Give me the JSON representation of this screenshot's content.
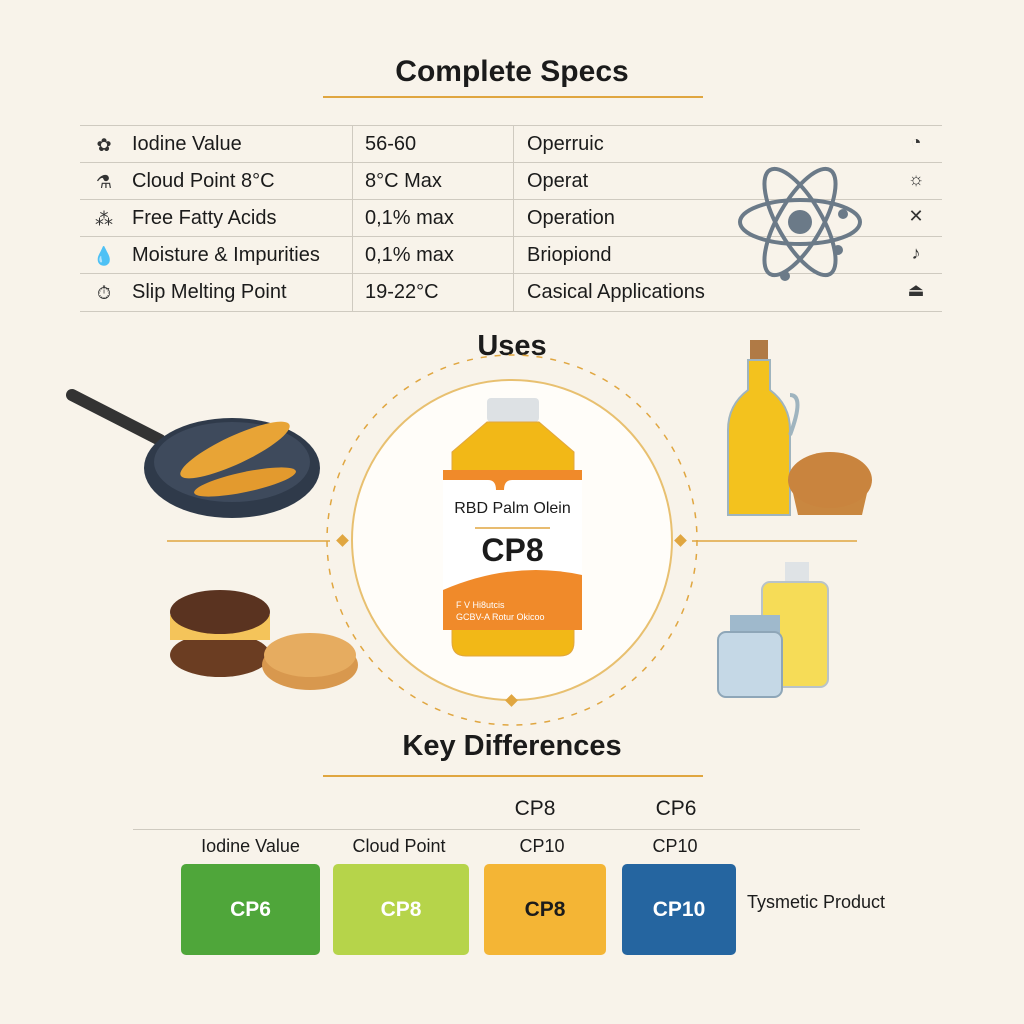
{
  "specs": {
    "title": "Complete Specs",
    "rows": [
      {
        "icon": "gear-flower-icon",
        "label": "Iodine Value",
        "value": "56-60",
        "application": "Operruic",
        "right_icon": "gauge-icon"
      },
      {
        "icon": "flask-icon",
        "label": "Cloud Point 8°C",
        "value": "8°C Max",
        "application": "Operat",
        "right_icon": "sun-icon"
      },
      {
        "icon": "molecule-icon",
        "label": "Free Fatty Acids",
        "value": "0,1% max",
        "application": "Operation",
        "right_icon": "cross-icon"
      },
      {
        "icon": "drop-icon",
        "label": "Moisture & Impurities",
        "value": "0,1% max",
        "application": "Briopiond",
        "right_icon": "music-note-icon"
      },
      {
        "icon": "timer-icon",
        "label": "Slip Melting Point",
        "value": "19-22°C",
        "application": "Casical Applications",
        "right_icon": "stack-icon"
      }
    ]
  },
  "uses": {
    "title": "Uses",
    "product_name": "RBD Palm Olein",
    "product_grade": "CP8",
    "label_small_1": "F V Hi8utcis",
    "label_small_2": "GCBV-A Rotur Okicoo"
  },
  "differences": {
    "title": "Key Differences",
    "top_headers": [
      "CP8",
      "CP6"
    ],
    "headers": [
      "Iodine Value",
      "Cloud Point",
      "CP10",
      "CP10"
    ],
    "boxes": [
      {
        "label": "CP6",
        "color": "#4fa63a"
      },
      {
        "label": "CP8",
        "color": "#b6d44a"
      },
      {
        "label": "CP8",
        "color": "#f4b535"
      },
      {
        "label": "CP10",
        "color": "#2565a0"
      }
    ],
    "side_label": "Tysmetic Product"
  },
  "colors": {
    "accent": "#e0a640",
    "background": "#f8f3ea"
  }
}
